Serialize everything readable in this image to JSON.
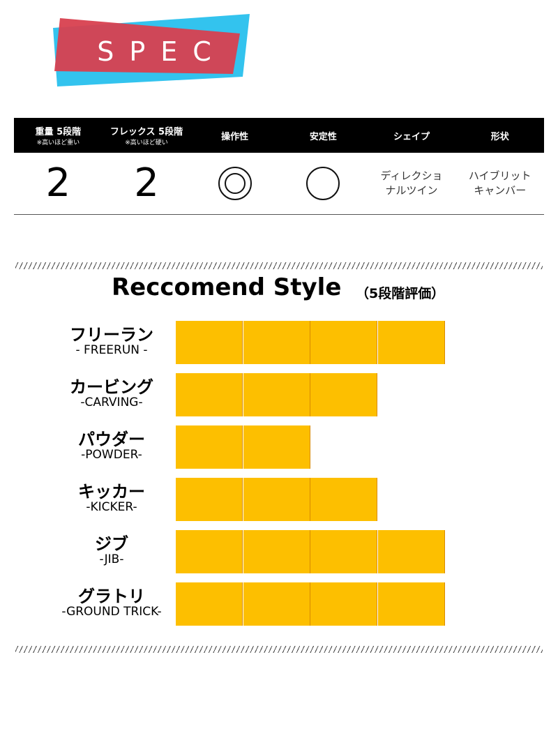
{
  "logo": {
    "text": "SPEC",
    "colors": {
      "red": "#cc3a4a",
      "blue": "#33c3ee"
    }
  },
  "spec": {
    "headers": [
      {
        "label": "重量 5段階",
        "note": "※高いほど重い"
      },
      {
        "label": "フレックス 5段階",
        "note": "※高いほど硬い"
      },
      {
        "label": "操作性",
        "note": ""
      },
      {
        "label": "安定性",
        "note": ""
      },
      {
        "label": "シェイプ",
        "note": ""
      },
      {
        "label": "形状",
        "note": ""
      }
    ],
    "values": {
      "weight": "2",
      "flex": "2",
      "handling": "double-circle",
      "stability": "circle",
      "shape": [
        "ディレクショ",
        "ナルツイン"
      ],
      "form": [
        "ハイブリット",
        "キャンバー"
      ]
    }
  },
  "chart_data": {
    "type": "bar",
    "orientation": "horizontal",
    "title": "Reccomend Style",
    "subtitle": "（5段階評価）",
    "xlim": [
      0,
      5
    ],
    "bar_color": "#fdbf00",
    "categories": [
      {
        "jp": "フリーラン",
        "en": "- FREERUN -"
      },
      {
        "jp": "カービング",
        "en": "-CARVING-"
      },
      {
        "jp": "パウダー",
        "en": "-POWDER-"
      },
      {
        "jp": "キッカー",
        "en": "-KICKER-"
      },
      {
        "jp": "ジブ",
        "en": "-JIB-"
      },
      {
        "jp": "グラトリ",
        "en": "-GROUND TRICK-"
      }
    ],
    "values": [
      4,
      3,
      2,
      3,
      4,
      4
    ]
  }
}
